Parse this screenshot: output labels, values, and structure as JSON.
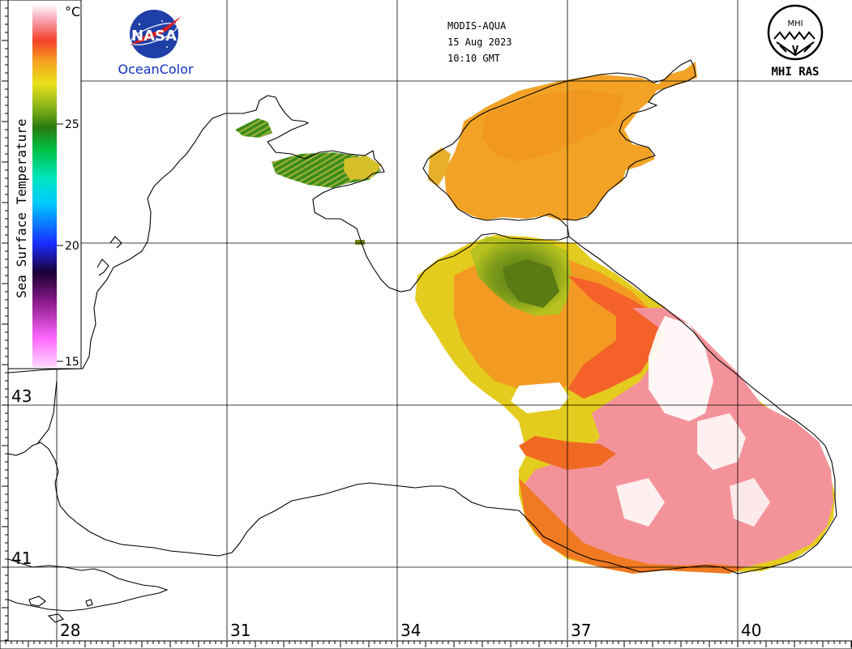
{
  "header": {
    "sensor": "MODIS-AQUA",
    "date": "15 Aug 2023",
    "time": "10:10 GMT"
  },
  "logos": {
    "nasa_text": "NASA",
    "oceancolor_text": "OceanColor",
    "mhi_text": "MHI RAS",
    "mhi_mark": "MHI"
  },
  "colorbar": {
    "title": "Sea Surface Temperature",
    "unit": "°C",
    "ticks": [
      "25",
      "20",
      "15"
    ]
  },
  "latitude_labels": [
    "43",
    "41"
  ],
  "longitude_labels": [
    "28",
    "31",
    "34",
    "37",
    "40"
  ],
  "colors": {
    "coastline": "#000000",
    "grid": "#000000",
    "cold_green": "#2e8b1f",
    "warm_yellow": "#d8d41a",
    "orange": "#f08a1e",
    "hot_pink": "#f47a8a",
    "hottest": "#ffffff",
    "nasa_blue": "#1f3fa8",
    "oceancolor_blue": "#1030c0"
  }
}
